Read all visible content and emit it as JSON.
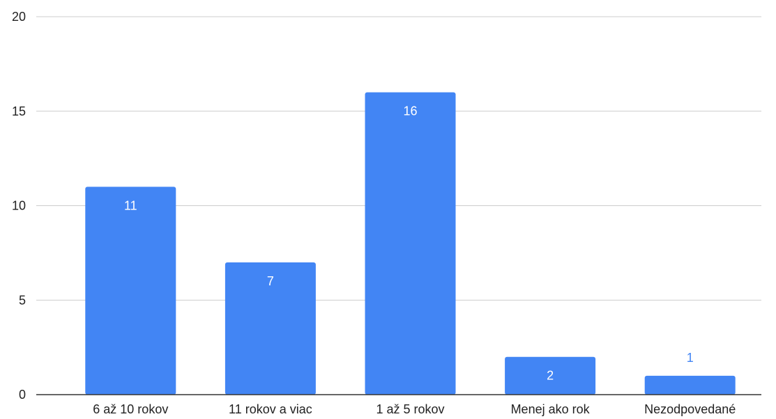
{
  "chart_data": {
    "type": "bar",
    "title": "",
    "xlabel": "",
    "ylabel": "",
    "categories": [
      "6 až 10 rokov",
      "11 rokov a viac",
      "1 až 5 rokov",
      "Menej ako rok",
      "Nezodpovedané"
    ],
    "values": [
      11,
      7,
      16,
      2,
      1
    ],
    "data_labels": [
      "11",
      "7",
      "16",
      "2",
      "1"
    ],
    "ylim": [
      0,
      20
    ],
    "yticks": [
      0,
      5,
      10,
      15,
      20
    ],
    "ytick_labels": [
      "0",
      "5",
      "10",
      "15",
      "20"
    ],
    "grid": true,
    "legend": "none",
    "colors": {
      "bar": "#4285f4",
      "label_inside": "#ffffff",
      "label_outside": "#4285f4",
      "grid": "#cccccc",
      "axis": "#333333",
      "text": "#222222"
    }
  }
}
